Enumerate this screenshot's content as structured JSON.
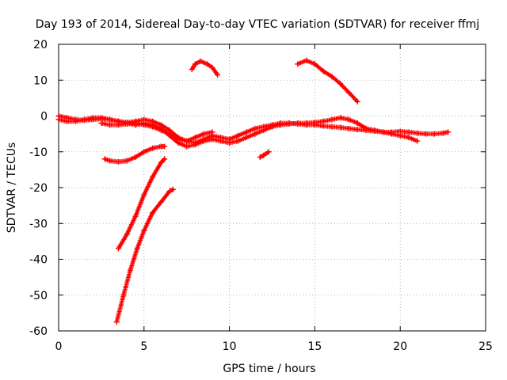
{
  "chart_data": {
    "type": "scatter",
    "title": "Day 193 of 2014, Sidereal Day-to-day VTEC variation (SDTVAR) for receiver ffmj",
    "xlabel": "GPS time / hours",
    "ylabel": "SDTVAR / TECUs",
    "xlim": [
      0,
      25
    ],
    "ylim": [
      -60,
      20
    ],
    "xticks": [
      0,
      5,
      10,
      15,
      20,
      25
    ],
    "yticks": [
      -60,
      -50,
      -40,
      -30,
      -20,
      -10,
      0,
      10,
      20
    ],
    "grid": true,
    "marker": "+",
    "color": "#ff0000",
    "series": [
      {
        "name": "track-main-a",
        "x": [
          0,
          0.5,
          1,
          1.5,
          2,
          2.5,
          3,
          3.5,
          4,
          4.5,
          5,
          5.5,
          6,
          6.5,
          7,
          7.5,
          8,
          8.5,
          9,
          9.5,
          10,
          10.5,
          11,
          11.5,
          12,
          12.5,
          13,
          13.5,
          14,
          14.5,
          15,
          15.5,
          16,
          16.5,
          17,
          17.5,
          18,
          18.5,
          19,
          19.5,
          20,
          20.5,
          21,
          21.5,
          22,
          22.5,
          22.8
        ],
        "y": [
          0,
          -0.5,
          -1,
          -1.2,
          -1,
          -0.8,
          -1,
          -1.5,
          -1.8,
          -1.5,
          -1,
          -1.5,
          -2.5,
          -4,
          -6,
          -7,
          -7.5,
          -6.5,
          -5.5,
          -6,
          -6.5,
          -5.5,
          -4.5,
          -3.5,
          -3,
          -2.5,
          -2,
          -2,
          -2.2,
          -2.5,
          -2.5,
          -2.8,
          -3,
          -3.2,
          -3.5,
          -3.8,
          -4,
          -4.2,
          -4.5,
          -4.5,
          -4.3,
          -4.5,
          -4.8,
          -5,
          -5,
          -4.8,
          -4.5
        ]
      },
      {
        "name": "track-main-b",
        "x": [
          0,
          0.5,
          1,
          1.5,
          2,
          2.5,
          3,
          3.5,
          4,
          4.5,
          5,
          5.5,
          6,
          6.5,
          7,
          7.5,
          8,
          8.5,
          9,
          9.5,
          10,
          10.5,
          11,
          11.5,
          12,
          12.5,
          13,
          13.5,
          14,
          14.5,
          15,
          15.5,
          16,
          16.5,
          17,
          17.5,
          18,
          18.5,
          19,
          19.5,
          20,
          20.5,
          21
        ],
        "y": [
          -1,
          -1.5,
          -1.5,
          -1,
          -0.5,
          -0.5,
          -1,
          -1.5,
          -2,
          -2.5,
          -2,
          -2.5,
          -3.5,
          -5.5,
          -7.5,
          -8.5,
          -8,
          -7,
          -6.5,
          -7,
          -7.5,
          -7,
          -6,
          -5,
          -4,
          -3,
          -2.5,
          -2.2,
          -2,
          -2,
          -1.8,
          -1.5,
          -1,
          -0.5,
          -1,
          -2,
          -3.5,
          -4,
          -4.5,
          -5,
          -5.5,
          -6,
          -7
        ]
      },
      {
        "name": "track-main-c",
        "x": [
          2.5,
          3,
          3.5,
          4,
          4.5,
          5,
          5.5,
          6,
          6.5,
          7,
          7.5,
          8,
          8.5,
          9
        ],
        "y": [
          -2,
          -2.5,
          -2.5,
          -2.2,
          -2,
          -2.5,
          -3,
          -4,
          -5,
          -6.5,
          -7,
          -6,
          -5,
          -4.5
        ]
      },
      {
        "name": "track-upper-right",
        "x": [
          14,
          14.5,
          15,
          15.5,
          16,
          16.5,
          17,
          17.5
        ],
        "y": [
          14.5,
          15.5,
          14.5,
          12.5,
          11,
          9,
          6.5,
          4
        ]
      },
      {
        "name": "track-upper-mid",
        "x": [
          7.8,
          8,
          8.3,
          8.7,
          9,
          9.3
        ],
        "y": [
          13,
          14.5,
          15.3,
          14.5,
          13.5,
          11.5
        ]
      },
      {
        "name": "track-lower-arc",
        "x": [
          2.7,
          3,
          3.5,
          4,
          4.5,
          5,
          5.5,
          6,
          6.2
        ],
        "y": [
          -12,
          -12.5,
          -12.8,
          -12.5,
          -11.5,
          -10,
          -9,
          -8.5,
          -8.5
        ]
      },
      {
        "name": "track-small",
        "x": [
          11.8,
          12,
          12.3
        ],
        "y": [
          -11.5,
          -11,
          -10
        ]
      },
      {
        "name": "track-steep-1",
        "x": [
          3.5,
          4,
          4.5,
          5,
          5.5,
          6,
          6.2
        ],
        "y": [
          -37,
          -33,
          -28,
          -22,
          -17,
          -13,
          -12
        ]
      },
      {
        "name": "track-steep-2",
        "x": [
          3.4,
          3.8,
          4.2,
          4.6,
          5,
          5.5,
          6,
          6.5,
          6.7
        ],
        "y": [
          -57.5,
          -50,
          -43,
          -37,
          -32,
          -27,
          -24,
          -21,
          -20.5
        ]
      }
    ]
  }
}
